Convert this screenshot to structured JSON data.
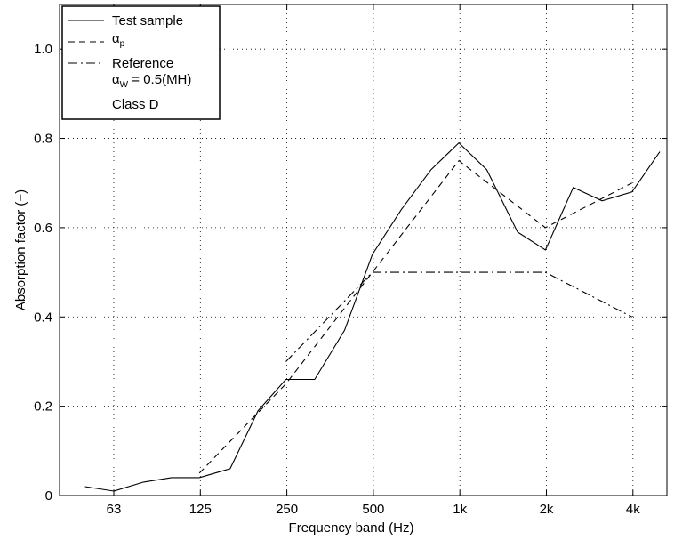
{
  "chart_data": {
    "type": "line",
    "xlabel": "Frequency band (Hz)",
    "ylabel": "Absorption factor (−)",
    "ylim": [
      0,
      1.1
    ],
    "x_scale": "log2 (third-octave bands)",
    "grid": true,
    "legend_placement": "top-left",
    "x_ticks": [
      "63",
      "125",
      "250",
      "500",
      "1k",
      "2k",
      "4k"
    ],
    "y_ticks": [
      "0",
      "0.2",
      "0.4",
      "0.6",
      "0.8",
      "1.0"
    ],
    "series": [
      {
        "name": "Test sample",
        "style": "solid",
        "x": [
          50,
          63,
          80,
          100,
          125,
          160,
          200,
          250,
          315,
          400,
          500,
          630,
          800,
          1000,
          1250,
          1600,
          2000,
          2500,
          3150,
          4000,
          5000
        ],
        "y": [
          0.02,
          0.01,
          0.03,
          0.04,
          0.04,
          0.06,
          0.19,
          0.26,
          0.26,
          0.37,
          0.54,
          0.64,
          0.73,
          0.79,
          0.73,
          0.59,
          0.55,
          0.69,
          0.66,
          0.68,
          0.77
        ]
      },
      {
        "name_symbol": "α",
        "name_sub": "p",
        "style": "dashed",
        "x": [
          125,
          250,
          500,
          1000,
          2000,
          4000
        ],
        "y": [
          0.05,
          0.25,
          0.5,
          0.75,
          0.6,
          0.7
        ]
      },
      {
        "name": "Reference",
        "style": "dashdot",
        "x": [
          250,
          500,
          1000,
          2000,
          4000
        ],
        "y": [
          0.3,
          0.5,
          0.5,
          0.5,
          0.4
        ]
      }
    ],
    "legend": {
      "line1": "Test sample",
      "line2_symbol": "α",
      "line2_sub": "p",
      "line3": "Reference",
      "line4_symbol": "α",
      "line4_sub": "W",
      "line4_rest": " = 0.5(MH)",
      "line5": "Class D"
    }
  }
}
